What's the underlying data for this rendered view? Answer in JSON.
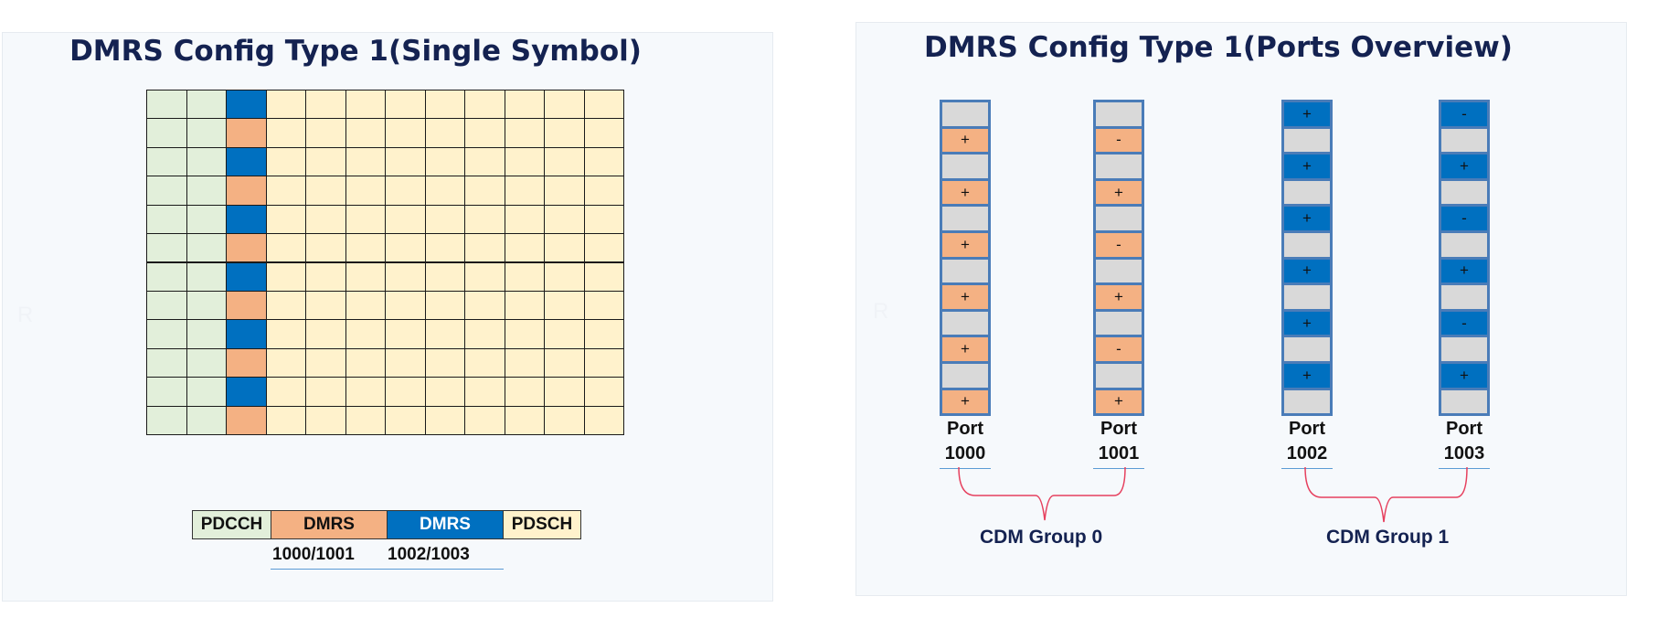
{
  "colors": {
    "pdcch": "#e2efda",
    "dmrs_a": "#f4b183",
    "dmrs_b": "#0070c0",
    "pdsch": "#fff2cc",
    "empty": "#d9d9d9",
    "bracket": "#e6405e",
    "underline": "#5b9bd5"
  },
  "left": {
    "title": "DMRS Config Type 1(Single Symbol)",
    "grid": {
      "rows": 12,
      "cols": 12,
      "pdcch_cols": 2,
      "dmrs_col": 3,
      "dmrs_row_pattern": [
        "b",
        "a"
      ]
    },
    "legend": {
      "items": [
        {
          "label": "PDCCH",
          "color": "pdcch"
        },
        {
          "label": "DMRS",
          "color": "dmrs_a"
        },
        {
          "label": "DMRS",
          "color": "dmrs_b"
        },
        {
          "label": "PDSCH",
          "color": "pdsch"
        }
      ],
      "sublabels": [
        "1000/1001",
        "1002/1003"
      ]
    },
    "watermark": "R"
  },
  "right": {
    "title": "DMRS Config Type 1(Ports Overview)",
    "watermark": "R",
    "ports": [
      {
        "line1": "Port",
        "line2": "1000",
        "color": "dmrs_a",
        "filled_rows": "odd",
        "signs": [
          "+",
          "+",
          "+",
          "+",
          "+",
          "+"
        ]
      },
      {
        "line1": "Port",
        "line2": "1001",
        "color": "dmrs_a",
        "filled_rows": "odd",
        "signs": [
          "-",
          "+",
          "-",
          "+",
          "-",
          "+"
        ]
      },
      {
        "line1": "Port",
        "line2": "1002",
        "color": "dmrs_b",
        "filled_rows": "even",
        "signs": [
          "+",
          "+",
          "+",
          "+",
          "+",
          "+"
        ]
      },
      {
        "line1": "Port",
        "line2": "1003",
        "color": "dmrs_b",
        "filled_rows": "even",
        "signs": [
          "-",
          "+",
          "-",
          "+",
          "-",
          "+"
        ]
      }
    ],
    "groups": [
      {
        "label": "CDM Group 0"
      },
      {
        "label": "CDM Group 1"
      }
    ]
  }
}
